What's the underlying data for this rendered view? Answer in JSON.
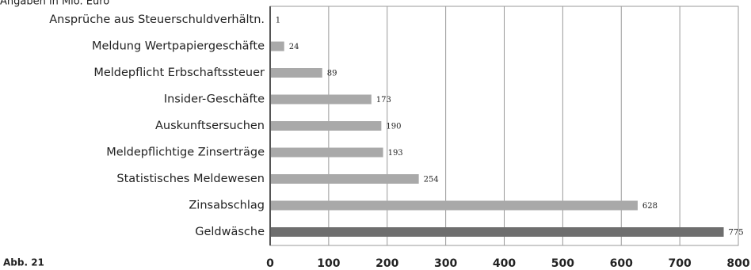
{
  "chart_data": {
    "type": "barh",
    "subtitle": "Angaben in Mio. Euro",
    "annotation": "Abb. 21",
    "categories": [
      "Ansprüche aus Steuerschuldverhältn.",
      "Meldung Wertpapiergeschäfte",
      "Meldepflicht Erbschaftssteuer",
      "Insider-Geschäfte",
      "Auskunftsersuchen",
      "Meldepflichtige Zinserträge",
      "Statistisches Meldewesen",
      "Zinsabschlag",
      "Geldwäsche"
    ],
    "values": [
      1,
      24,
      89,
      173,
      190,
      193,
      254,
      628,
      775
    ],
    "colors": [
      "#a9a9a9",
      "#a9a9a9",
      "#a9a9a9",
      "#a9a9a9",
      "#a9a9a9",
      "#a9a9a9",
      "#a9a9a9",
      "#a9a9a9",
      "#6e6e6e"
    ],
    "xlim": [
      0,
      800
    ],
    "xticks": [
      0,
      100,
      200,
      300,
      400,
      500,
      600,
      700,
      800
    ],
    "grid": true
  }
}
